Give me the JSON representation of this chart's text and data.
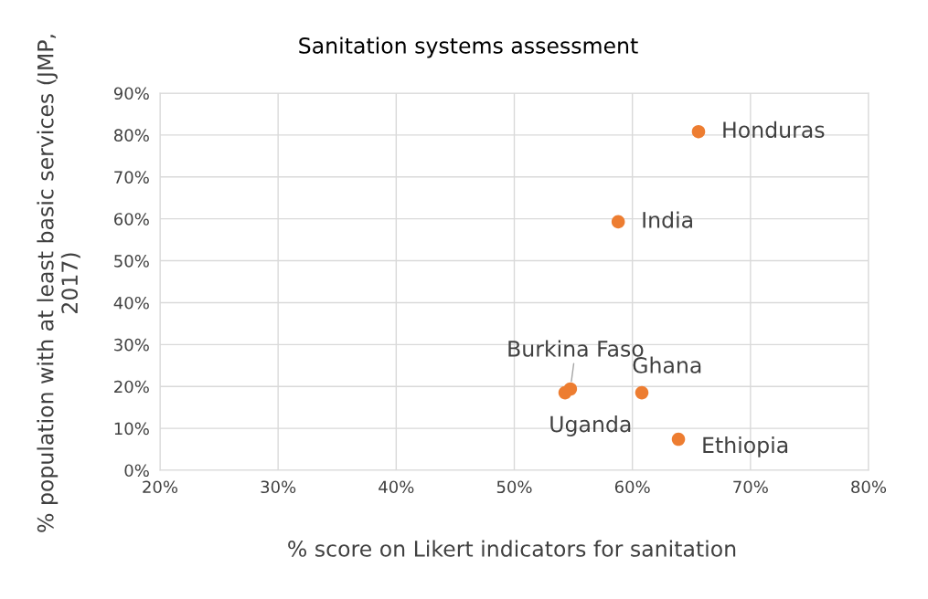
{
  "chart_data": {
    "type": "scatter",
    "title": "Sanitation systems assessment",
    "xlabel": "% score on Likert indicators for sanitation",
    "ylabel": "% population with at least basic services (JMP, 2017)",
    "series": [
      {
        "color": "#ed7d31",
        "x": [
          65.6,
          58.8,
          54.75,
          54.3,
          60.8,
          63.9
        ],
        "values": [
          80.8,
          59.3,
          19.4,
          18.5,
          18.5,
          7.4
        ]
      }
    ],
    "annotations": [
      {
        "text": "Honduras",
        "x": 65.6,
        "y": 80.8
      },
      {
        "text": "India",
        "x": 58.8,
        "y": 59.3
      },
      {
        "text": "Burkina Faso",
        "x": 54.75,
        "y": 19.4
      },
      {
        "text": "Uganda",
        "x": 54.3,
        "y": 18.5
      },
      {
        "text": "Ghana",
        "x": 60.8,
        "y": 18.5
      },
      {
        "text": "Ethiopia",
        "x": 63.9,
        "y": 7.4
      }
    ],
    "xlim": [
      20,
      80
    ],
    "xticks": [
      {
        "value": 20,
        "label": "20%"
      },
      {
        "value": 30,
        "label": "30%"
      },
      {
        "value": 40,
        "label": "40%"
      },
      {
        "value": 50,
        "label": "50%"
      },
      {
        "value": 60,
        "label": "60%"
      },
      {
        "value": 70,
        "label": "70%"
      },
      {
        "value": 80,
        "label": "80%"
      }
    ],
    "ylim": [
      0,
      90
    ],
    "yticks": [
      {
        "value": 0,
        "label": "0%"
      },
      {
        "value": 10,
        "label": "10%"
      },
      {
        "value": 20,
        "label": "20%"
      },
      {
        "value": 30,
        "label": "30%"
      },
      {
        "value": 40,
        "label": "40%"
      },
      {
        "value": 50,
        "label": "50%"
      },
      {
        "value": 60,
        "label": "60%"
      },
      {
        "value": 70,
        "label": "70%"
      },
      {
        "value": 80,
        "label": "80%"
      },
      {
        "value": 90,
        "label": "90%"
      }
    ],
    "grid": true,
    "marker": "circle"
  }
}
